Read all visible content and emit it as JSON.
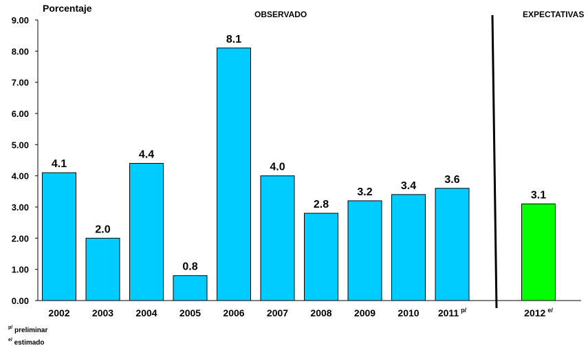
{
  "chart_data": {
    "type": "bar",
    "ylabel": "Porcentaje",
    "ylim": [
      0,
      9
    ],
    "ytick_step": 1,
    "yticks": [
      "0.00",
      "1.00",
      "2.00",
      "3.00",
      "4.00",
      "5.00",
      "6.00",
      "7.00",
      "8.00",
      "9.00"
    ],
    "sections": {
      "observed": "OBSERVADO",
      "expected": "EXPECTATIVAS"
    },
    "categories": [
      "2002",
      "2003",
      "2004",
      "2005",
      "2006",
      "2007",
      "2008",
      "2009",
      "2010",
      "2011",
      "2012"
    ],
    "category_marks": [
      "",
      "",
      "",
      "",
      "",
      "",
      "",
      "",
      "",
      "p/",
      "e/"
    ],
    "values": [
      4.1,
      2.0,
      4.4,
      0.8,
      8.1,
      4.0,
      2.8,
      3.2,
      3.4,
      3.6,
      3.1
    ],
    "value_labels": [
      "4.1",
      "2.0",
      "4.4",
      "0.8",
      "8.1",
      "4.0",
      "2.8",
      "3.2",
      "3.4",
      "3.6",
      "3.1"
    ],
    "bar_groups": [
      "observed",
      "observed",
      "observed",
      "observed",
      "observed",
      "observed",
      "observed",
      "observed",
      "observed",
      "observed",
      "expected"
    ],
    "colors": {
      "observed": "#00CCFF",
      "expected": "#00FF00",
      "outline": "#000000"
    },
    "grid": false
  },
  "notes": {
    "p_mark": "p/",
    "p_text": "preliminar",
    "e_mark": "e/",
    "e_text": "estimado"
  }
}
